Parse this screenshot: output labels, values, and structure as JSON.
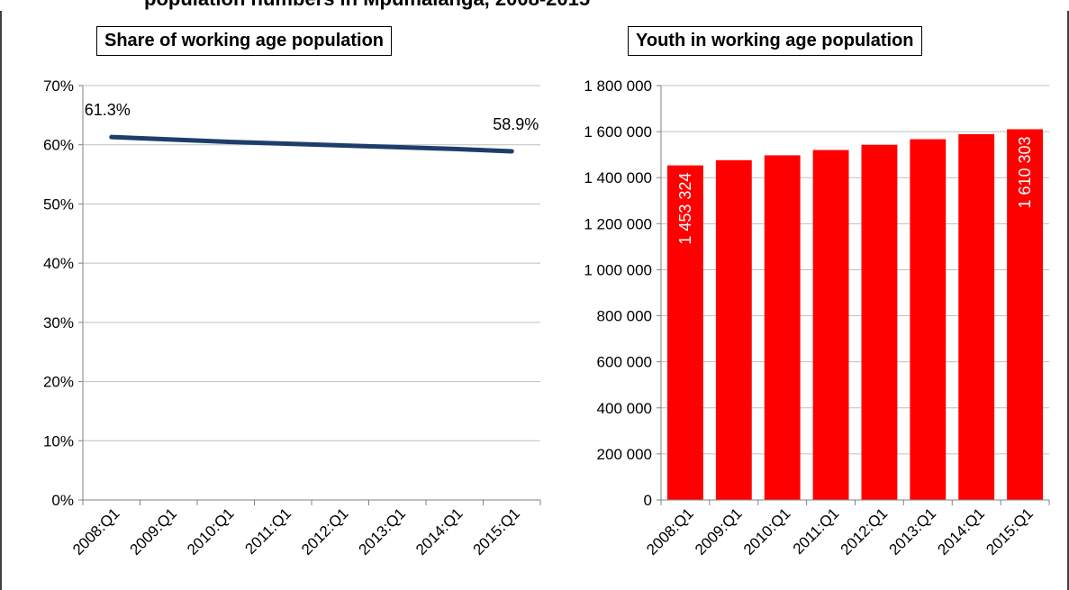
{
  "figure_title": "population numbers in Mpumalanga, 2008-2015",
  "chart_data": [
    {
      "type": "line",
      "title": "Share of working age population",
      "categories": [
        "2008:Q1",
        "2009:Q1",
        "2010:Q1",
        "2011:Q1",
        "2012:Q1",
        "2013:Q1",
        "2014:Q1",
        "2015:Q1"
      ],
      "series": [
        {
          "values": [
            61.3,
            60.9,
            60.5,
            60.2,
            59.9,
            59.6,
            59.3,
            58.9
          ],
          "color": "#1f3d6b"
        }
      ],
      "data_labels": [
        {
          "index": 0,
          "text": "61.3%"
        },
        {
          "index": 7,
          "text": "58.9%"
        }
      ],
      "ylim": [
        0,
        70
      ],
      "yticks": [
        "0%",
        "10%",
        "20%",
        "30%",
        "40%",
        "50%",
        "60%",
        "70%"
      ],
      "ytick_values": [
        0,
        10,
        20,
        30,
        40,
        50,
        60,
        70
      ],
      "grid": true,
      "xlabel": "",
      "ylabel": ""
    },
    {
      "type": "bar",
      "title": "Youth in working age population",
      "categories": [
        "2008:Q1",
        "2009:Q1",
        "2010:Q1",
        "2011:Q1",
        "2012:Q1",
        "2013:Q1",
        "2014:Q1",
        "2015:Q1"
      ],
      "series": [
        {
          "values": [
            1453324,
            1476000,
            1497000,
            1520000,
            1543000,
            1567000,
            1589000,
            1610303
          ],
          "color": "#ff0000"
        }
      ],
      "data_labels": [
        {
          "index": 0,
          "text": "1 453 324"
        },
        {
          "index": 7,
          "text": "1 610 303"
        }
      ],
      "ylim": [
        0,
        1800000
      ],
      "yticks": [
        "0",
        "200 000",
        "400 000",
        "600 000",
        "800 000",
        "1 000 000",
        "1 200 000",
        "1 400 000",
        "1 600 000",
        "1 800 000"
      ],
      "ytick_values": [
        0,
        200000,
        400000,
        600000,
        800000,
        1000000,
        1200000,
        1400000,
        1600000,
        1800000
      ],
      "grid": true,
      "xlabel": "",
      "ylabel": ""
    }
  ]
}
